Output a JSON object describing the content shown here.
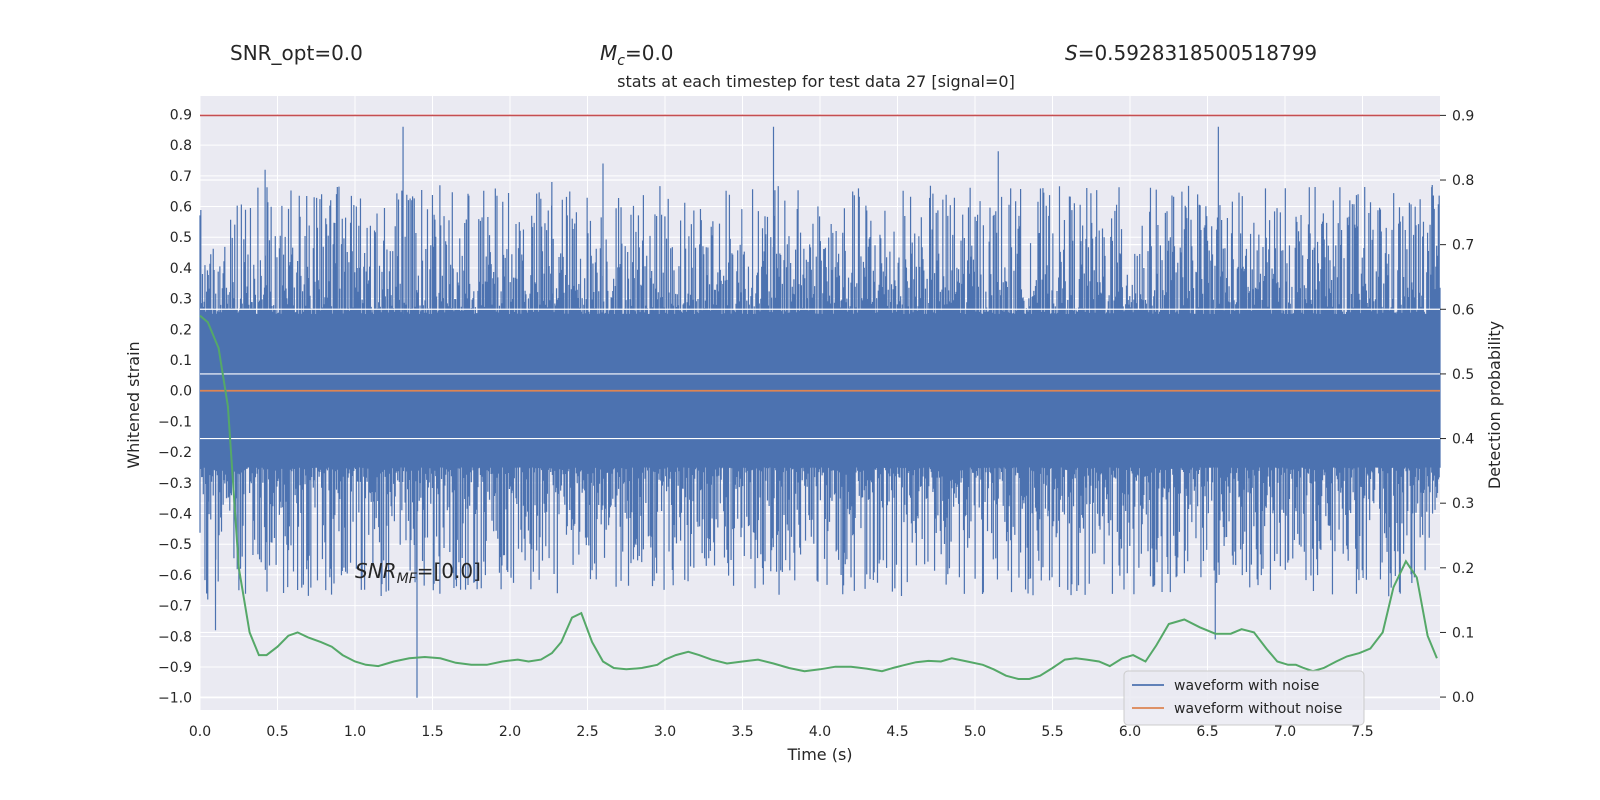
{
  "header": {
    "snr_opt": "SNR_opt=0.0",
    "mc_label": "M",
    "mc_sub": "c",
    "mc_value": "=0.0",
    "s_label": "S",
    "s_value": "=0.5928318500518799"
  },
  "chart_data": {
    "type": "line",
    "title": "stats at each timestep for test data 27 [signal=0]",
    "xlabel": "Time (s)",
    "ylabel": "Whitened strain",
    "y2label": "Detection probability",
    "xlim": [
      0.0,
      8.0
    ],
    "ylim": [
      -1.04,
      0.96
    ],
    "y2lim": [
      -0.02,
      0.93
    ],
    "xticks": [
      0.0,
      0.5,
      1.0,
      1.5,
      2.0,
      2.5,
      3.0,
      3.5,
      4.0,
      4.5,
      5.0,
      5.5,
      6.0,
      6.5,
      7.0,
      7.5
    ],
    "yticks": [
      0.9,
      0.8,
      0.7,
      0.6,
      0.5,
      0.4,
      0.3,
      0.2,
      0.1,
      0.0,
      -0.1,
      -0.2,
      -0.3,
      -0.4,
      -0.5,
      -0.6,
      -0.7,
      -0.8,
      -0.9,
      -1.0
    ],
    "y2ticks": [
      0.9,
      0.8,
      0.7,
      0.6,
      0.5,
      0.4,
      0.3,
      0.2,
      0.1,
      0.0
    ],
    "grid": true,
    "legend_position": "lower-right",
    "annotation": {
      "base": "SNR",
      "sub": "MF",
      "value": "=[0.0]",
      "x": 1.0,
      "y": -0.61
    },
    "threshold": {
      "value": 0.9,
      "axis": "y2",
      "color": "#c44e52"
    },
    "series": [
      {
        "name": "waveform with noise",
        "color": "#4c72b0",
        "axis": "y",
        "description": "dense noise, approx. +/-0.4 envelope",
        "peaks": [
          {
            "x": 0.42,
            "y": 0.72
          },
          {
            "x": 1.31,
            "y": 0.86
          },
          {
            "x": 1.4,
            "y": -1.0
          },
          {
            "x": 2.27,
            "y": 0.68
          },
          {
            "x": 2.6,
            "y": 0.74
          },
          {
            "x": 3.7,
            "y": 0.86
          },
          {
            "x": 5.15,
            "y": 0.78
          },
          {
            "x": 6.57,
            "y": 0.86
          },
          {
            "x": 6.55,
            "y": -0.81
          },
          {
            "x": 7.95,
            "y": 0.67
          },
          {
            "x": 0.05,
            "y": -0.68
          },
          {
            "x": 0.1,
            "y": -0.78
          }
        ]
      },
      {
        "name": "waveform without noise",
        "color": "#dd8452",
        "axis": "y",
        "values": "flat zero"
      },
      {
        "name": "detection probability",
        "color": "#55a868",
        "axis": "y2",
        "x": [
          0.0,
          0.05,
          0.12,
          0.18,
          0.25,
          0.32,
          0.38,
          0.43,
          0.5,
          0.57,
          0.63,
          0.7,
          0.78,
          0.85,
          0.92,
          1.0,
          1.07,
          1.15,
          1.25,
          1.35,
          1.45,
          1.55,
          1.65,
          1.75,
          1.85,
          1.95,
          2.05,
          2.12,
          2.2,
          2.27,
          2.33,
          2.4,
          2.46,
          2.53,
          2.6,
          2.67,
          2.75,
          2.85,
          2.95,
          3.0,
          3.07,
          3.15,
          3.22,
          3.3,
          3.4,
          3.5,
          3.6,
          3.7,
          3.8,
          3.9,
          4.0,
          4.1,
          4.2,
          4.3,
          4.4,
          4.47,
          4.55,
          4.62,
          4.7,
          4.78,
          4.85,
          4.95,
          5.05,
          5.12,
          5.2,
          5.28,
          5.35,
          5.42,
          5.5,
          5.58,
          5.65,
          5.72,
          5.8,
          5.87,
          5.95,
          6.02,
          6.1,
          6.17,
          6.25,
          6.35,
          6.45,
          6.55,
          6.65,
          6.72,
          6.8,
          6.88,
          6.95,
          7.02,
          7.07,
          7.12,
          7.18,
          7.25,
          7.33,
          7.4,
          7.48,
          7.55,
          7.63,
          7.7,
          7.78,
          7.85,
          7.92,
          7.98
        ],
        "values": [
          0.59,
          0.58,
          0.54,
          0.45,
          0.2,
          0.1,
          0.065,
          0.065,
          0.078,
          0.095,
          0.1,
          0.092,
          0.085,
          0.078,
          0.065,
          0.055,
          0.05,
          0.048,
          0.055,
          0.06,
          0.062,
          0.06,
          0.053,
          0.05,
          0.05,
          0.055,
          0.058,
          0.055,
          0.058,
          0.068,
          0.085,
          0.123,
          0.13,
          0.085,
          0.055,
          0.045,
          0.043,
          0.045,
          0.05,
          0.058,
          0.065,
          0.07,
          0.065,
          0.058,
          0.052,
          0.055,
          0.058,
          0.052,
          0.045,
          0.04,
          0.043,
          0.047,
          0.047,
          0.044,
          0.04,
          0.045,
          0.05,
          0.054,
          0.056,
          0.055,
          0.06,
          0.055,
          0.05,
          0.043,
          0.033,
          0.028,
          0.028,
          0.033,
          0.045,
          0.058,
          0.06,
          0.058,
          0.055,
          0.048,
          0.06,
          0.065,
          0.055,
          0.08,
          0.113,
          0.12,
          0.108,
          0.098,
          0.098,
          0.105,
          0.1,
          0.075,
          0.055,
          0.05,
          0.05,
          0.045,
          0.04,
          0.045,
          0.055,
          0.063,
          0.068,
          0.075,
          0.1,
          0.17,
          0.21,
          0.185,
          0.095,
          0.06
        ]
      }
    ]
  }
}
